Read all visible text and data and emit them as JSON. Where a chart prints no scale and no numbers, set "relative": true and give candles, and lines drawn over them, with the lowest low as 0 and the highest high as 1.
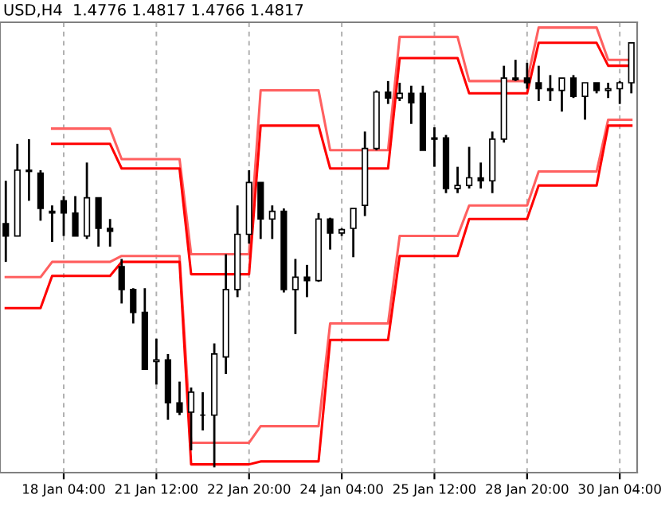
{
  "chart_data": {
    "type": "candlestick",
    "title": "USD,H4  1.4776 1.4817 1.4766 1.4817",
    "relative": true,
    "grid": "x",
    "categories": [
      null,
      null,
      null,
      null,
      null,
      "18 Jan 04:00",
      null,
      null,
      null,
      null,
      null,
      null,
      null,
      "21 Jan 12:00",
      null,
      null,
      null,
      null,
      null,
      null,
      null,
      "22 Jan 20:00",
      null,
      null,
      null,
      null,
      null,
      null,
      null,
      "24 Jan 04:00",
      null,
      null,
      null,
      null,
      null,
      null,
      null,
      "25 Jan 12:00",
      null,
      null,
      null,
      null,
      null,
      null,
      null,
      "28 Jan 20:00",
      null,
      null,
      null,
      null,
      null,
      null,
      null,
      "30 Jan 04:00",
      null
    ],
    "ohlc": [
      [
        0.574,
        0.675,
        0.484,
        0.545
      ],
      [
        0.545,
        0.762,
        0.545,
        0.7
      ],
      [
        0.7,
        0.773,
        0.628,
        0.697
      ],
      [
        0.693,
        0.7,
        0.581,
        0.61
      ],
      [
        0.603,
        0.617,
        0.531,
        0.599
      ],
      [
        0.628,
        0.639,
        0.545,
        0.599
      ],
      [
        0.599,
        0.639,
        0.545,
        0.545
      ],
      [
        0.545,
        0.718,
        0.538,
        0.635
      ],
      [
        0.635,
        0.635,
        0.52,
        0.563
      ],
      [
        0.563,
        0.585,
        0.52,
        0.556
      ],
      [
        0.473,
        0.491,
        0.386,
        0.419
      ],
      [
        0.419,
        0.422,
        0.339,
        0.365
      ],
      [
        0.365,
        0.422,
        0.231,
        0.231
      ],
      [
        0.249,
        0.303,
        0.195,
        0.253
      ],
      [
        0.253,
        0.267,
        0.112,
        0.152
      ],
      [
        0.152,
        0.202,
        0.123,
        0.13
      ],
      [
        0.13,
        0.188,
        0.04,
        0.177
      ],
      [
        0.123,
        0.177,
        0.087,
        0.123
      ],
      [
        0.123,
        0.292,
        0,
        0.267
      ],
      [
        0.26,
        0.502,
        0.22,
        0.419
      ],
      [
        0.419,
        0.617,
        0.401,
        0.549
      ],
      [
        0.549,
        0.7,
        0.527,
        0.671
      ],
      [
        0.671,
        0.671,
        0.538,
        0.585
      ],
      [
        0.585,
        0.617,
        0.538,
        0.603
      ],
      [
        0.603,
        0.61,
        0.412,
        0.419
      ],
      [
        0.419,
        0.491,
        0.314,
        0.448
      ],
      [
        0.448,
        0.477,
        0.401,
        0.44
      ],
      [
        0.44,
        0.599,
        0.437,
        0.585
      ],
      [
        0.585,
        0.588,
        0.513,
        0.552
      ],
      [
        0.552,
        0.563,
        0.545,
        0.56
      ],
      [
        0.563,
        0.61,
        0.495,
        0.61
      ],
      [
        0.617,
        0.791,
        0.592,
        0.751
      ],
      [
        0.751,
        0.888,
        0.747,
        0.884
      ],
      [
        0.884,
        0.91,
        0.856,
        0.87
      ],
      [
        0.87,
        0.906,
        0.863,
        0.881
      ],
      [
        0.881,
        0.899,
        0.809,
        0.859
      ],
      [
        0.881,
        0.899,
        0.747,
        0.747
      ],
      [
        0.773,
        0.801,
        0.708,
        0.776
      ],
      [
        0.776,
        0.783,
        0.646,
        0.657
      ],
      [
        0.657,
        0.708,
        0.646,
        0.664
      ],
      [
        0.664,
        0.755,
        0.657,
        0.682
      ],
      [
        0.682,
        0.718,
        0.657,
        0.675
      ],
      [
        0.675,
        0.791,
        0.646,
        0.773
      ],
      [
        0.773,
        0.946,
        0.765,
        0.917
      ],
      [
        0.917,
        0.96,
        0.91,
        0.913
      ],
      [
        0.917,
        0.953,
        0.892,
        0.906
      ],
      [
        0.906,
        0.946,
        0.863,
        0.892
      ],
      [
        0.892,
        0.924,
        0.863,
        0.888
      ],
      [
        0.888,
        0.917,
        0.838,
        0.917
      ],
      [
        0.917,
        0.924,
        0.87,
        0.874
      ],
      [
        0.874,
        0.906,
        0.819,
        0.906
      ],
      [
        0.906,
        0.906,
        0.881,
        0.888
      ],
      [
        0.888,
        0.906,
        0.87,
        0.892
      ],
      [
        0.892,
        0.91,
        0.856,
        0.906
      ],
      [
        0.906,
        1.0,
        0.881,
        1.0
      ]
    ],
    "color": "#000000",
    "series": [
      {
        "type": "line",
        "color": "#ff6060",
        "values": [
          null,
          null,
          null,
          null,
          0.798,
          0.798,
          0.798,
          0.798,
          0.798,
          0.798,
          0.726,
          0.726,
          0.726,
          0.726,
          0.726,
          0.726,
          0.502,
          0.502,
          0.502,
          0.502,
          0.502,
          0.502,
          0.888,
          0.888,
          0.888,
          0.888,
          0.888,
          0.888,
          0.747,
          0.747,
          0.747,
          0.747,
          0.747,
          0.747,
          1.014,
          1.014,
          1.014,
          1.014,
          1.014,
          1.014,
          0.91,
          0.91,
          0.91,
          0.91,
          0.91,
          0.91,
          1.036,
          1.036,
          1.036,
          1.036,
          1.036,
          1.036,
          0.96,
          0.96,
          0.96
        ]
      },
      {
        "type": "line",
        "color": "#ff0000",
        "values": [
          null,
          null,
          null,
          null,
          0.762,
          0.762,
          0.762,
          0.762,
          0.762,
          0.762,
          0.704,
          0.704,
          0.704,
          0.704,
          0.704,
          0.704,
          0.455,
          0.455,
          0.455,
          0.455,
          0.455,
          0.455,
          0.805,
          0.805,
          0.805,
          0.805,
          0.805,
          0.805,
          0.704,
          0.704,
          0.704,
          0.704,
          0.704,
          0.704,
          0.964,
          0.964,
          0.964,
          0.964,
          0.964,
          0.964,
          0.881,
          0.881,
          0.881,
          0.881,
          0.881,
          0.881,
          1.0,
          1.0,
          1.0,
          1.0,
          1.0,
          1.0,
          0.946,
          0.946,
          0.946
        ]
      },
      {
        "type": "line",
        "color": "#ff6060",
        "values": [
          0.448,
          0.448,
          0.448,
          0.448,
          0.484,
          0.484,
          0.484,
          0.484,
          0.484,
          0.484,
          0.498,
          0.498,
          0.498,
          0.498,
          0.498,
          0.498,
          0.058,
          0.058,
          0.058,
          0.058,
          0.058,
          0.058,
          0.097,
          0.097,
          0.097,
          0.097,
          0.097,
          0.097,
          0.339,
          0.339,
          0.339,
          0.339,
          0.339,
          0.339,
          0.545,
          0.545,
          0.545,
          0.545,
          0.545,
          0.545,
          0.617,
          0.617,
          0.617,
          0.617,
          0.617,
          0.617,
          0.697,
          0.697,
          0.697,
          0.697,
          0.697,
          0.697,
          0.819,
          0.819,
          0.819
        ]
      },
      {
        "type": "line",
        "color": "#ff0000",
        "values": [
          0.375,
          0.375,
          0.375,
          0.375,
          0.451,
          0.451,
          0.451,
          0.451,
          0.451,
          0.451,
          0.484,
          0.484,
          0.484,
          0.484,
          0.484,
          0.484,
          0.007,
          0.007,
          0.007,
          0.007,
          0.007,
          0.007,
          0.014,
          0.014,
          0.014,
          0.014,
          0.014,
          0.014,
          0.3,
          0.3,
          0.3,
          0.3,
          0.3,
          0.3,
          0.498,
          0.498,
          0.498,
          0.498,
          0.498,
          0.498,
          0.585,
          0.585,
          0.585,
          0.585,
          0.585,
          0.585,
          0.664,
          0.664,
          0.664,
          0.664,
          0.664,
          0.664,
          0.805,
          0.805,
          0.805
        ]
      }
    ]
  }
}
